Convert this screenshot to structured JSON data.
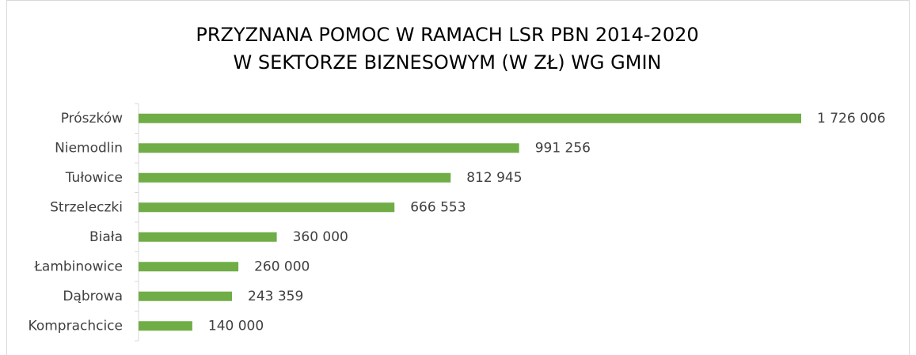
{
  "chart_data": {
    "type": "bar",
    "orientation": "horizontal",
    "title": [
      "PRZYZNANA POMOC W RAMACH LSR PBN 2014-2020",
      "W SEKTORZE BIZNESOWYM (W ZŁ) WG GMIN"
    ],
    "categories": [
      "Prószków",
      "Niemodlin",
      "Tułowice",
      "Strzeleczki",
      "Biała",
      "Łambinowice",
      "Dąbrowa",
      "Komprachcice"
    ],
    "values": [
      1726006,
      991256,
      812945,
      666553,
      360000,
      260000,
      243359,
      140000
    ],
    "value_labels": [
      "1 726 006",
      "991 256",
      "812 945",
      "666 553",
      "360 000",
      "260 000",
      "243 359",
      "140 000"
    ],
    "color": "#70ad47"
  }
}
